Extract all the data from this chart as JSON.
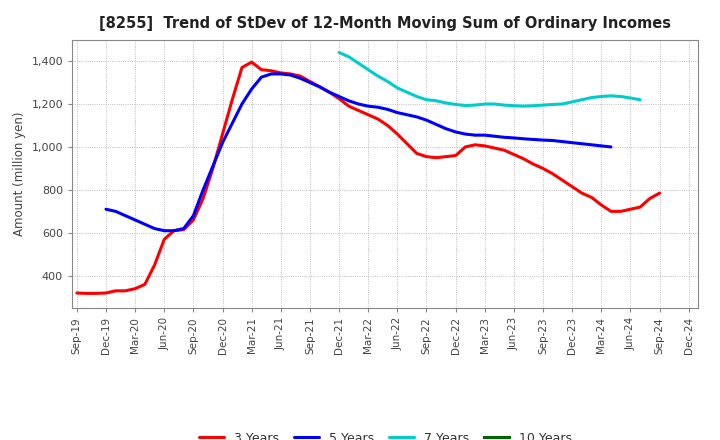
{
  "title": "[8255]  Trend of StDev of 12-Month Moving Sum of Ordinary Incomes",
  "ylabel": "Amount (million yen)",
  "background_color": "#ffffff",
  "grid_color": "#aaaaaa",
  "series": {
    "3 Years": {
      "color": "#ff0000",
      "x": [
        0,
        1,
        2,
        3,
        4,
        5,
        6,
        7,
        8,
        9,
        10,
        11,
        12,
        13,
        14,
        15,
        16,
        17,
        18,
        19,
        20,
        21,
        22,
        23,
        24,
        25,
        26,
        27,
        28,
        29,
        30,
        31,
        32,
        33,
        34,
        35,
        36,
        37,
        38,
        39,
        40,
        41,
        42,
        43,
        44,
        45,
        46,
        47,
        48,
        49,
        50,
        51,
        52,
        53,
        54,
        55,
        56,
        57,
        58,
        59,
        60
      ],
      "y": [
        320,
        318,
        318,
        320,
        330,
        330,
        340,
        360,
        450,
        570,
        610,
        615,
        660,
        760,
        900,
        1060,
        1220,
        1370,
        1395,
        1360,
        1355,
        1345,
        1340,
        1330,
        1305,
        1280,
        1255,
        1225,
        1190,
        1170,
        1150,
        1130,
        1100,
        1060,
        1015,
        970,
        955,
        950,
        955,
        960,
        1000,
        1010,
        1005,
        995,
        985,
        965,
        945,
        920,
        900,
        875,
        845,
        815,
        785,
        765,
        730,
        700,
        700,
        710,
        720,
        760,
        785
      ]
    },
    "5 Years": {
      "color": "#0000ff",
      "x": [
        3,
        4,
        5,
        6,
        7,
        8,
        9,
        10,
        11,
        12,
        13,
        14,
        15,
        16,
        17,
        18,
        19,
        20,
        21,
        22,
        23,
        24,
        25,
        26,
        27,
        28,
        29,
        30,
        31,
        32,
        33,
        34,
        35,
        36,
        37,
        38,
        39,
        40,
        41,
        42,
        43,
        44,
        45,
        46,
        47,
        48,
        49,
        50,
        51,
        52,
        53,
        54,
        55,
        56,
        57,
        58,
        59,
        60
      ],
      "y": [
        710,
        700,
        680,
        660,
        640,
        620,
        610,
        610,
        620,
        680,
        800,
        910,
        1020,
        1110,
        1200,
        1270,
        1325,
        1340,
        1340,
        1335,
        1320,
        1300,
        1280,
        1255,
        1235,
        1215,
        1200,
        1190,
        1185,
        1175,
        1160,
        1150,
        1140,
        1125,
        1105,
        1085,
        1070,
        1060,
        1055,
        1055,
        1050,
        1045,
        1042,
        1038,
        1035,
        1032,
        1030,
        1025,
        1020,
        1015,
        1010,
        1005,
        1000,
        null,
        null,
        null,
        null,
        null
      ]
    },
    "7 Years": {
      "color": "#00cccc",
      "x": [
        27,
        28,
        29,
        30,
        31,
        32,
        33,
        34,
        35,
        36,
        37,
        38,
        39,
        40,
        41,
        42,
        43,
        44,
        45,
        46,
        47,
        48,
        49,
        50,
        51,
        52,
        53,
        54,
        55,
        56,
        57,
        58
      ],
      "y": [
        1440,
        1420,
        1390,
        1360,
        1330,
        1305,
        1275,
        1255,
        1235,
        1220,
        1215,
        1205,
        1198,
        1193,
        1195,
        1200,
        1200,
        1195,
        1192,
        1190,
        1192,
        1195,
        1198,
        1200,
        1210,
        1220,
        1230,
        1235,
        1238,
        1235,
        1228,
        1220
      ]
    },
    "10 Years": {
      "color": "#006600",
      "x": [],
      "y": []
    }
  },
  "xtick_labels": [
    "Sep-19",
    "Dec-19",
    "Mar-20",
    "Jun-20",
    "Sep-20",
    "Dec-20",
    "Mar-21",
    "Jun-21",
    "Sep-21",
    "Dec-21",
    "Mar-22",
    "Jun-22",
    "Sep-22",
    "Dec-22",
    "Mar-23",
    "Jun-23",
    "Sep-23",
    "Dec-23",
    "Mar-24",
    "Jun-24",
    "Sep-24",
    "Dec-24"
  ],
  "xtick_positions": [
    0,
    3,
    6,
    9,
    12,
    15,
    18,
    21,
    24,
    27,
    30,
    33,
    36,
    39,
    42,
    45,
    48,
    51,
    54,
    57,
    60,
    63
  ],
  "xlim": [
    -0.5,
    64
  ],
  "ylim": [
    250,
    1500
  ],
  "yticks": [
    400,
    600,
    800,
    1000,
    1200,
    1400
  ],
  "ytick_labels": [
    "400",
    "600",
    "800",
    "1,000",
    "1,200",
    "1,400"
  ]
}
